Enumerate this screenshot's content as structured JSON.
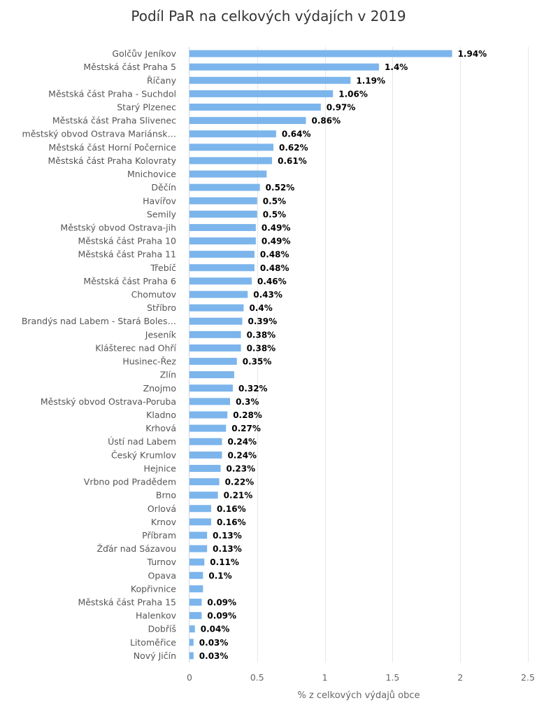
{
  "chart_data": {
    "type": "bar",
    "orientation": "horizontal",
    "title": "Podíl PaR na celkových výdajích v 2019",
    "xlabel": "% z celkových výdajů obce",
    "ylabel": "",
    "xlim": [
      0,
      2.5
    ],
    "ticks": [
      "0",
      "0.5",
      "1",
      "1.5",
      "2",
      "2.5"
    ],
    "tick_values": [
      0,
      0.5,
      1,
      1.5,
      2,
      2.5
    ],
    "bar_color": "#7cb5ec",
    "grid": "vertical",
    "categories": [
      "Golčův Jeníkov",
      "Městská část Praha 5",
      "Říčany",
      "Městská část Praha - Suchdol",
      "Starý Plzenec",
      "Městská část Praha Slivenec",
      "městský obvod Ostrava Mariánsk…",
      "Městská část Horní Počernice",
      "Městská část Praha Kolovraty",
      "Mnichovice",
      "Děčín",
      "Havířov",
      "Semily",
      "Městský obvod Ostrava-jih",
      "Městská část Praha 10",
      "Městská část Praha 11",
      "Třebíč",
      "Městská část Praha 6",
      "Chomutov",
      "Stříbro",
      "Brandýs nad Labem - Stará Boles…",
      "Jeseník",
      "Klášterec nad Ohří",
      "Husinec-Řez",
      "Zlín",
      "Znojmo",
      "Městský obvod Ostrava-Poruba",
      "Kladno",
      "Krhová",
      "Ústí nad Labem",
      "Český Krumlov",
      "Hejnice",
      "Vrbno pod Pradědem",
      "Brno",
      "Orlová",
      "Krnov",
      "Příbram",
      "Žďár nad Sázavou",
      "Turnov",
      "Opava",
      "Kopřivnice",
      "Městská část Praha 15",
      "Halenkov",
      "Dobříš",
      "Litoměřice",
      "Nový Jičín"
    ],
    "values": [
      1.94,
      1.4,
      1.19,
      1.06,
      0.97,
      0.86,
      0.64,
      0.62,
      0.61,
      0.57,
      0.52,
      0.5,
      0.5,
      0.49,
      0.49,
      0.48,
      0.48,
      0.46,
      0.43,
      0.4,
      0.39,
      0.38,
      0.38,
      0.35,
      0.33,
      0.32,
      0.3,
      0.28,
      0.27,
      0.24,
      0.24,
      0.23,
      0.22,
      0.21,
      0.16,
      0.16,
      0.13,
      0.13,
      0.11,
      0.1,
      0.1,
      0.09,
      0.09,
      0.04,
      0.03,
      0.03
    ],
    "data_labels": [
      "1.94%",
      "1.4%",
      "1.19%",
      "1.06%",
      "0.97%",
      "0.86%",
      "0.64%",
      "0.62%",
      "0.61%",
      "",
      "0.52%",
      "0.5%",
      "0.5%",
      "0.49%",
      "0.49%",
      "0.48%",
      "0.48%",
      "0.46%",
      "0.43%",
      "0.4%",
      "0.39%",
      "0.38%",
      "0.38%",
      "0.35%",
      "",
      "0.32%",
      "0.3%",
      "0.28%",
      "0.27%",
      "0.24%",
      "0.24%",
      "0.23%",
      "0.22%",
      "0.21%",
      "0.16%",
      "0.16%",
      "0.13%",
      "0.13%",
      "0.11%",
      "0.1%",
      "",
      "0.09%",
      "0.09%",
      "0.04%",
      "0.03%",
      "0.03%"
    ]
  }
}
